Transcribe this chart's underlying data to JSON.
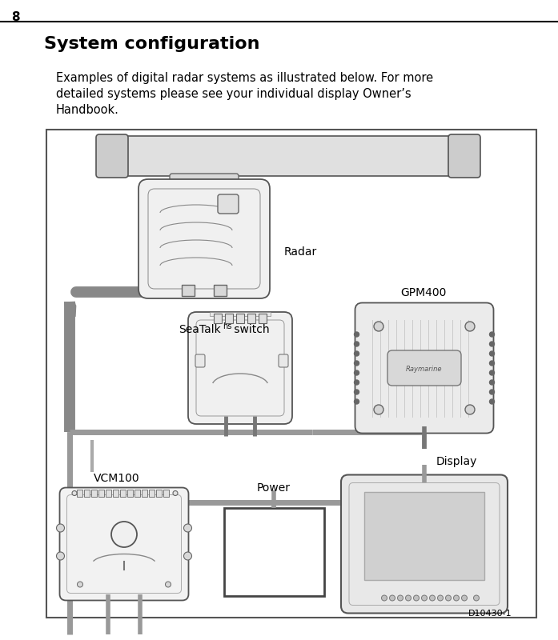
{
  "page_number": "8",
  "title": "System configuration",
  "body_line1": "Examples of digital radar systems as illustrated below. For more",
  "body_line2": "detailed systems please see your individual display Owner’s",
  "body_line3": "Handbook.",
  "label_radar": "Radar",
  "label_gpm400": "GPM400",
  "label_seatalk": "SeaTalk",
  "label_seatalk_sup": "hs",
  "label_seatalk_suffix": " switch",
  "label_vcm100": "VCM100",
  "label_power": "Power",
  "label_display": "Display",
  "label_diagram_id": "D10430-1",
  "bg_color": "#ffffff",
  "border_color": "#555555",
  "cable_dark": "#808080",
  "cable_med": "#999999",
  "device_fill": "#f5f5f5",
  "device_border": "#555555",
  "screen_fill": "#d8d8d8"
}
